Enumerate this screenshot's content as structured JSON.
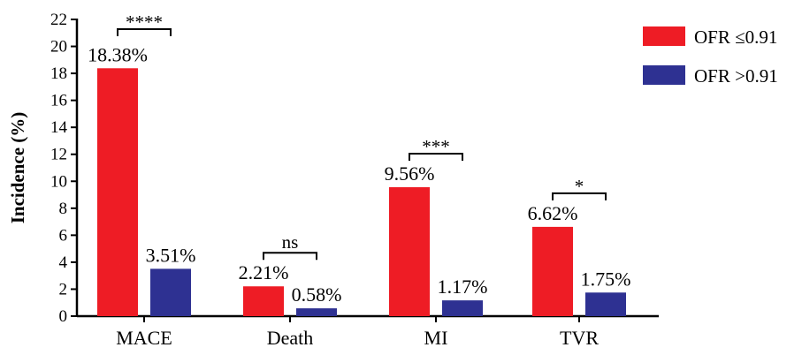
{
  "chart_data": {
    "type": "bar",
    "ylabel": "Incidence (%)",
    "ylim": [
      0,
      22
    ],
    "yticks": [
      0,
      2,
      4,
      6,
      8,
      10,
      12,
      14,
      16,
      18,
      20,
      22
    ],
    "categories": [
      "MACE",
      "Death",
      "MI",
      "TVR"
    ],
    "series": [
      {
        "name": "OFR ≤0.91",
        "color": "#ee1c25",
        "values": [
          18.38,
          2.21,
          9.56,
          6.62
        ],
        "labels": [
          "18.38%",
          "2.21%",
          "9.56%",
          "6.62%"
        ]
      },
      {
        "name": "OFR >0.91",
        "color": "#2e3192",
        "values": [
          3.51,
          0.58,
          1.17,
          1.75
        ],
        "labels": [
          "3.51%",
          "0.58%",
          "1.17%",
          "1.75%"
        ]
      }
    ],
    "significance": [
      "****",
      "ns",
      "***",
      "*"
    ],
    "legend_position": "top-right",
    "grid": false
  }
}
